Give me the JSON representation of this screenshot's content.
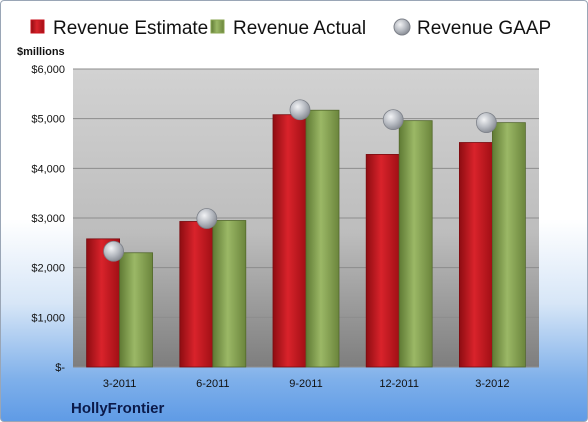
{
  "company": "HollyFrontier",
  "colors": {
    "estimate": "#c8121c",
    "actual": "#8aa651",
    "gaap": "#b8bcc4"
  },
  "chart_data": {
    "type": "bar",
    "unit_label": "$millions",
    "categories": [
      "3-2011",
      "6-2011",
      "9-2011",
      "12-2011",
      "3-2012"
    ],
    "series": [
      {
        "name": "Revenue Estimate",
        "kind": "bar",
        "values": [
          2580,
          2930,
          5080,
          4280,
          4520
        ]
      },
      {
        "name": "Revenue Actual",
        "kind": "bar",
        "values": [
          2300,
          2950,
          5170,
          4960,
          4920
        ]
      },
      {
        "name": "Revenue GAAP",
        "kind": "marker",
        "values": [
          2330,
          2990,
          5180,
          4980,
          4920
        ]
      }
    ],
    "ylim": [
      0,
      6000
    ],
    "yticks": [
      0,
      1000,
      2000,
      3000,
      4000,
      5000,
      6000
    ],
    "ytick_labels": [
      "$-",
      "$1,000",
      "$2,000",
      "$3,000",
      "$4,000",
      "$5,000",
      "$6,000"
    ],
    "legend": "top",
    "grid": true
  }
}
